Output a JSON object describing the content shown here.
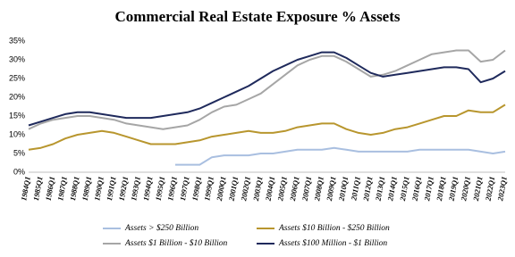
{
  "chart_data": {
    "type": "line",
    "title": "Commercial Real Estate Exposure % Assets",
    "categories": [
      "1984Q1",
      "1985Q1",
      "1986Q1",
      "1987Q1",
      "1988Q1",
      "1989Q1",
      "1990Q1",
      "1991Q1",
      "1992Q1",
      "1993Q1",
      "1994Q1",
      "1995Q1",
      "1996Q1",
      "1997Q1",
      "1998Q1",
      "1999Q1",
      "2000Q1",
      "2001Q1",
      "2002Q1",
      "2003Q1",
      "2004Q1",
      "2005Q1",
      "2006Q1",
      "2007Q1",
      "2008Q1",
      "2009Q1",
      "2010Q1",
      "2011Q1",
      "2012Q1",
      "2013Q1",
      "2014Q1",
      "2015Q1",
      "2016Q1",
      "2017Q1",
      "2018Q1",
      "2019Q1",
      "2020Q1",
      "2021Q1",
      "2022Q1",
      "2023Q1"
    ],
    "series": [
      {
        "name": "Assets > $250 Billion",
        "color": "#a9bfe0",
        "values": [
          null,
          null,
          null,
          null,
          null,
          null,
          null,
          null,
          null,
          null,
          null,
          null,
          2,
          2,
          2,
          4,
          4.5,
          4.5,
          4.5,
          5,
          5,
          5.5,
          6,
          6,
          6,
          6.5,
          6,
          5.5,
          5.5,
          5.5,
          5.5,
          5.5,
          6,
          6,
          6,
          6,
          6,
          5.5,
          5,
          5.5
        ]
      },
      {
        "name": "Assets  $10 Billion - $250 Billion",
        "color": "#b8962e",
        "values": [
          6,
          6.5,
          7.5,
          9,
          10,
          10.5,
          11,
          10.5,
          9.5,
          8.5,
          7.5,
          7.5,
          7.5,
          8,
          8.5,
          9.5,
          10,
          10.5,
          11,
          10.5,
          10.5,
          11,
          12,
          12.5,
          13,
          13,
          11.5,
          10.5,
          10,
          10.5,
          11.5,
          12,
          13,
          14,
          15,
          15,
          16.5,
          16,
          16,
          18
        ]
      },
      {
        "name": "Assets $1 Billion - $10 Billion",
        "color": "#a6a6a6",
        "values": [
          11.5,
          13,
          14,
          14.5,
          15,
          15,
          14.5,
          14,
          13,
          12.5,
          12,
          11.5,
          12,
          12.5,
          14,
          16,
          17.5,
          18,
          19.5,
          21,
          23.5,
          26,
          28.5,
          30,
          31,
          31,
          29.5,
          27.5,
          25.5,
          26,
          27,
          28.5,
          30,
          31.5,
          32,
          32.5,
          32.5,
          29.5,
          30,
          32.5
        ]
      },
      {
        "name": "Assets $100 Million - $1 Billion",
        "color": "#1f2a5c",
        "values": [
          12.5,
          13.5,
          14.5,
          15.5,
          16,
          16,
          15.5,
          15,
          14.5,
          14.5,
          14.5,
          15,
          15.5,
          16,
          17,
          18.5,
          20,
          21.5,
          23,
          25,
          27,
          28.5,
          30,
          31,
          32,
          32,
          30.5,
          28.5,
          26.5,
          25.5,
          26,
          26.5,
          27,
          27.5,
          28,
          28,
          27.5,
          24,
          25,
          27
        ]
      }
    ],
    "ylim": [
      0,
      35
    ],
    "yticks": [
      {
        "value": 0,
        "label": "0%"
      },
      {
        "value": 5,
        "label": "5%"
      },
      {
        "value": 10,
        "label": "10%"
      },
      {
        "value": 15,
        "label": "15%"
      },
      {
        "value": 20,
        "label": "20%"
      },
      {
        "value": 25,
        "label": "25%"
      },
      {
        "value": 30,
        "label": "30%"
      },
      {
        "value": 35,
        "label": "35%"
      }
    ],
    "grid": false
  }
}
